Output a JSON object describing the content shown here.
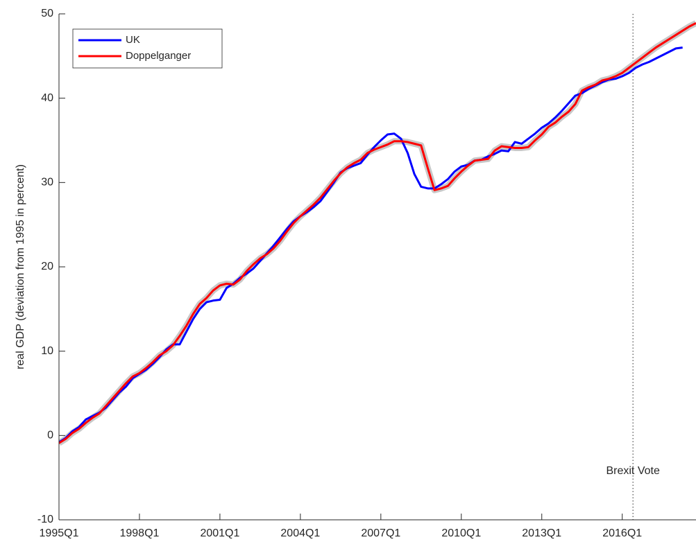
{
  "chart_data": {
    "type": "line",
    "y_label": "real GDP (deviation from 1995 in percent)",
    "x": [
      1995,
      1995.25,
      1995.5,
      1995.75,
      1996,
      1996.25,
      1996.5,
      1996.75,
      1997,
      1997.25,
      1997.5,
      1997.75,
      1998,
      1998.25,
      1998.5,
      1998.75,
      1999,
      1999.25,
      1999.5,
      1999.75,
      2000,
      2000.25,
      2000.5,
      2000.75,
      2001,
      2001.25,
      2001.5,
      2001.75,
      2002,
      2002.25,
      2002.5,
      2002.75,
      2003,
      2003.25,
      2003.5,
      2003.75,
      2004,
      2004.25,
      2004.5,
      2004.75,
      2005,
      2005.25,
      2005.5,
      2005.75,
      2006,
      2006.25,
      2006.5,
      2006.75,
      2007,
      2007.25,
      2007.5,
      2007.75,
      2008,
      2008.25,
      2008.5,
      2008.75,
      2009,
      2009.25,
      2009.5,
      2009.75,
      2010,
      2010.25,
      2010.5,
      2010.75,
      2011,
      2011.25,
      2011.5,
      2011.75,
      2012,
      2012.25,
      2012.5,
      2012.75,
      2013,
      2013.25,
      2013.5,
      2013.75,
      2014,
      2014.25,
      2014.5,
      2014.75,
      2015,
      2015.25,
      2015.5,
      2015.75,
      2016,
      2016.25,
      2016.5,
      2016.75,
      2017,
      2017.25,
      2017.5,
      2017.75,
      2018,
      2018.25,
      2018.5,
      2018.75
    ],
    "series": [
      {
        "name": "UK",
        "color": "#0000ff",
        "values": [
          -0.8,
          -0.3,
          0.5,
          1.0,
          1.9,
          2.3,
          2.7,
          3.3,
          4.2,
          5.1,
          5.8,
          6.8,
          7.3,
          7.8,
          8.5,
          9.3,
          10.2,
          10.8,
          10.8,
          12.3,
          13.8,
          15.0,
          15.8,
          16.0,
          16.1,
          17.5,
          18.0,
          18.7,
          19.2,
          19.8,
          20.7,
          21.6,
          22.5,
          23.5,
          24.5,
          25.4,
          26.0,
          26.5,
          27.1,
          27.8,
          28.9,
          30.0,
          31.2,
          31.7,
          32.0,
          32.3,
          33.3,
          34.2,
          35.0,
          35.7,
          35.8,
          35.2,
          33.5,
          31.0,
          29.5,
          29.3,
          29.3,
          29.8,
          30.4,
          31.3,
          31.9,
          32.1,
          32.6,
          32.7,
          33.1,
          33.4,
          33.8,
          33.7,
          34.8,
          34.6,
          35.2,
          35.8,
          36.5,
          37.0,
          37.7,
          38.5,
          39.4,
          40.3,
          40.6,
          41.1,
          41.5,
          41.9,
          42.2,
          42.3,
          42.6,
          43.0,
          43.6,
          44.0,
          44.3,
          44.7,
          45.1,
          45.5,
          45.9,
          46.0,
          null,
          46.4
        ]
      },
      {
        "name": "Doppelganger",
        "color": "#ff0000",
        "band_color": "#c8c8c8",
        "values": [
          -0.9,
          -0.4,
          0.3,
          0.8,
          1.5,
          2.1,
          2.6,
          3.5,
          4.4,
          5.3,
          6.2,
          7.0,
          7.4,
          8.0,
          8.7,
          9.5,
          10.0,
          10.7,
          11.8,
          13.0,
          14.4,
          15.6,
          16.3,
          17.2,
          17.8,
          18.0,
          17.9,
          18.5,
          19.5,
          20.3,
          21.0,
          21.5,
          22.2,
          23.1,
          24.2,
          25.2,
          26.0,
          26.7,
          27.4,
          28.2,
          29.2,
          30.2,
          31.1,
          31.8,
          32.3,
          32.7,
          33.5,
          33.9,
          34.2,
          34.5,
          34.9,
          34.9,
          34.8,
          34.6,
          34.4,
          31.7,
          29.1,
          29.3,
          29.6,
          30.5,
          31.3,
          32.0,
          32.6,
          32.7,
          32.8,
          33.8,
          34.3,
          34.2,
          34.1,
          34.1,
          34.2,
          35.0,
          35.7,
          36.6,
          37.1,
          37.8,
          38.4,
          39.3,
          40.9,
          41.3,
          41.6,
          42.1,
          42.3,
          42.6,
          43.0,
          43.6,
          44.2,
          44.8,
          45.4,
          46.0,
          46.5,
          47.0,
          47.5,
          48.0,
          48.5,
          48.9
        ]
      }
    ],
    "xlim": [
      1995,
      2018.75
    ],
    "xticks": [
      {
        "value": 1995,
        "label": "1995Q1"
      },
      {
        "value": 1998,
        "label": "1998Q1"
      },
      {
        "value": 2001,
        "label": "2001Q1"
      },
      {
        "value": 2004,
        "label": "2004Q1"
      },
      {
        "value": 2007,
        "label": "2007Q1"
      },
      {
        "value": 2010,
        "label": "2010Q1"
      },
      {
        "value": 2013,
        "label": "2013Q1"
      },
      {
        "value": 2016,
        "label": "2016Q1"
      }
    ],
    "ylim": [
      -10,
      50
    ],
    "yticks": [
      -10,
      0,
      10,
      20,
      30,
      40,
      50
    ],
    "vline": {
      "x": 2016.4,
      "label": "Brexit Vote"
    },
    "legend": "upper-left"
  }
}
